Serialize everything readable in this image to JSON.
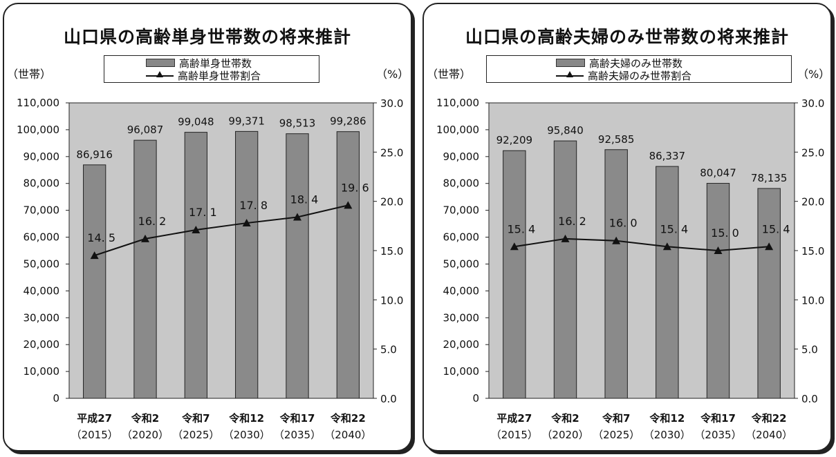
{
  "chart_data": [
    {
      "type": "bar",
      "title": "山口県の高齢単身世帯数の将来推計",
      "ylabel": "（世帯）",
      "y2label": "（%）",
      "categories": [
        "平成27",
        "令和2",
        "令和7",
        "令和12",
        "令和17",
        "令和22"
      ],
      "category_years": [
        "（2015）",
        "（2020）",
        "（2025）",
        "（2030）",
        "（2035）",
        "（2040）"
      ],
      "ylim": [
        0,
        110000
      ],
      "y2lim": [
        0,
        30
      ],
      "y_ticks": [
        "0",
        "10,000",
        "20,000",
        "30,000",
        "40,000",
        "50,000",
        "60,000",
        "70,000",
        "80,000",
        "90,000",
        "100,000",
        "110,000"
      ],
      "y2_ticks": [
        "0.0",
        "5.0",
        "10.0",
        "15.0",
        "20.0",
        "25.0",
        "30.0"
      ],
      "grid": false,
      "legend_position": "top",
      "series": [
        {
          "name": "高齢単身世帯数",
          "kind": "bar",
          "axis": "left",
          "values": [
            86916,
            96087,
            99048,
            99371,
            98513,
            99286
          ],
          "labels": [
            "86,916",
            "96,087",
            "99,048",
            "99,371",
            "98,513",
            "99,286"
          ]
        },
        {
          "name": "高齢単身世帯割合",
          "kind": "line",
          "axis": "right",
          "values": [
            14.5,
            16.2,
            17.1,
            17.8,
            18.4,
            19.6
          ],
          "labels": [
            "14. 5",
            "16. 2",
            "17. 1",
            "17. 8",
            "18. 4",
            "19. 6"
          ]
        }
      ],
      "colors": {
        "plot_bg": "#c8c8c8",
        "bar": "#8a8a8a",
        "line": "#111111"
      }
    },
    {
      "type": "bar",
      "title": "山口県の高齢夫婦のみ世帯数の将来推計",
      "ylabel": "（世帯）",
      "y2label": "（%）",
      "categories": [
        "平成27",
        "令和2",
        "令和7",
        "令和12",
        "令和17",
        "令和22"
      ],
      "category_years": [
        "（2015）",
        "（2020）",
        "（2025）",
        "（2030）",
        "（2035）",
        "（2040）"
      ],
      "ylim": [
        0,
        110000
      ],
      "y2lim": [
        0,
        30
      ],
      "y_ticks": [
        "0",
        "10,000",
        "20,000",
        "30,000",
        "40,000",
        "50,000",
        "60,000",
        "70,000",
        "80,000",
        "90,000",
        "100,000",
        "110,000"
      ],
      "y2_ticks": [
        "0.0",
        "5.0",
        "10.0",
        "15.0",
        "20.0",
        "25.0",
        "30.0"
      ],
      "grid": false,
      "legend_position": "top",
      "series": [
        {
          "name": "高齢夫婦のみ世帯数",
          "kind": "bar",
          "axis": "left",
          "values": [
            92209,
            95840,
            92585,
            86337,
            80047,
            78135
          ],
          "labels": [
            "92,209",
            "95,840",
            "92,585",
            "86,337",
            "80,047",
            "78,135"
          ]
        },
        {
          "name": "高齢夫婦のみ世帯割合",
          "kind": "line",
          "axis": "right",
          "values": [
            15.4,
            16.2,
            16.0,
            15.4,
            15.0,
            15.4
          ],
          "labels": [
            "15. 4",
            "16. 2",
            "16. 0",
            "15. 4",
            "15. 0",
            "15. 4"
          ]
        }
      ],
      "colors": {
        "plot_bg": "#c8c8c8",
        "bar": "#8a8a8a",
        "line": "#111111"
      }
    }
  ]
}
